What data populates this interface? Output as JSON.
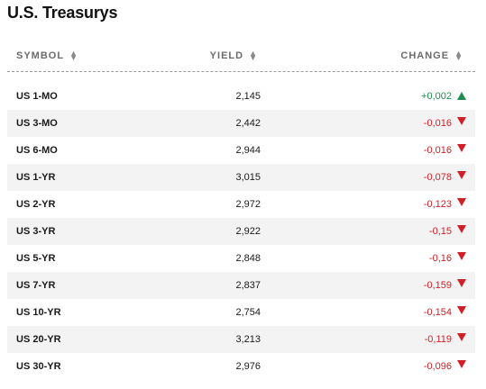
{
  "title": "U.S. Treasurys",
  "columns": {
    "symbol": "SYMBOL",
    "yield": "YIELD",
    "change": "CHANGE"
  },
  "sort_icon": "sort-up-down-icon",
  "colors": {
    "up": "#1e8c4e",
    "down": "#d11f26"
  },
  "rows": [
    {
      "symbol": "US 1-MO",
      "yield": "2,145",
      "change": "+0,002",
      "direction": "up"
    },
    {
      "symbol": "US 3-MO",
      "yield": "2,442",
      "change": "-0,016",
      "direction": "down"
    },
    {
      "symbol": "US 6-MO",
      "yield": "2,944",
      "change": "-0,016",
      "direction": "down"
    },
    {
      "symbol": "US 1-YR",
      "yield": "3,015",
      "change": "-0,078",
      "direction": "down"
    },
    {
      "symbol": "US 2-YR",
      "yield": "2,972",
      "change": "-0,123",
      "direction": "down"
    },
    {
      "symbol": "US 3-YR",
      "yield": "2,922",
      "change": "-0,15",
      "direction": "down"
    },
    {
      "symbol": "US 5-YR",
      "yield": "2,848",
      "change": "-0,16",
      "direction": "down"
    },
    {
      "symbol": "US 7-YR",
      "yield": "2,837",
      "change": "-0,159",
      "direction": "down"
    },
    {
      "symbol": "US 10-YR",
      "yield": "2,754",
      "change": "-0,154",
      "direction": "down"
    },
    {
      "symbol": "US 20-YR",
      "yield": "3,213",
      "change": "-0,119",
      "direction": "down"
    },
    {
      "symbol": "US 30-YR",
      "yield": "2,976",
      "change": "-0,096",
      "direction": "down"
    }
  ]
}
